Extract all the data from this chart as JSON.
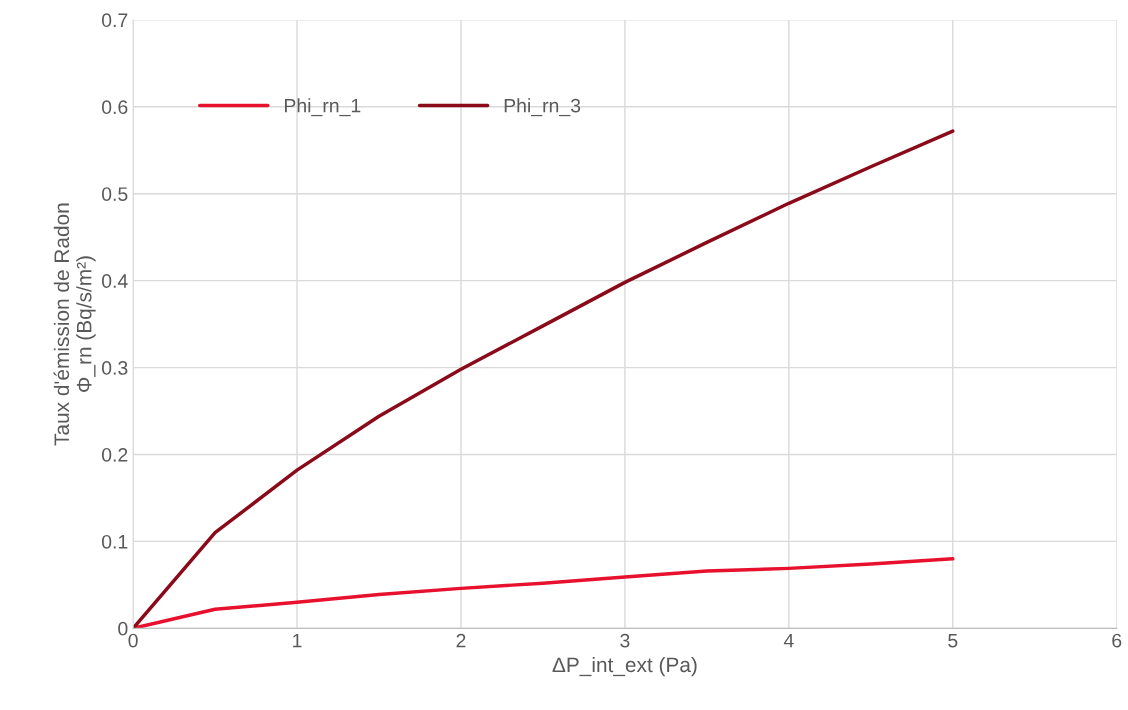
{
  "chart_data": {
    "type": "line",
    "xlabel": "ΔP_int_ext (Pa)",
    "ylabel": "Taux d'émission de Radon\nΦ_rn (Bq/s/m²)",
    "x": [
      0,
      0.5,
      1,
      1.5,
      2,
      2.5,
      3,
      3.5,
      4,
      4.5,
      5
    ],
    "series": [
      {
        "name": "Phi_rn_1",
        "color": "#e8112d",
        "values": [
          0,
          0.022,
          0.03,
          0.039,
          0.046,
          0.052,
          0.059,
          0.066,
          0.069,
          0.074,
          0.08
        ]
      },
      {
        "name": "Phi_rn_3",
        "color": "#8b0a1a",
        "values": [
          0,
          0.11,
          0.182,
          0.244,
          0.298,
          0.348,
          0.398,
          0.444,
          0.489,
          0.531,
          0.572
        ]
      }
    ],
    "xlim": [
      0,
      6
    ],
    "xticks": [
      0,
      1,
      2,
      3,
      4,
      5,
      6
    ],
    "ylim": [
      0,
      0.7
    ],
    "yticks": [
      0,
      0.1,
      0.2,
      0.3,
      0.4,
      0.5,
      0.6,
      0.7
    ],
    "grid": true,
    "legend": "top left",
    "marker": "none",
    "line_style": "solid"
  }
}
